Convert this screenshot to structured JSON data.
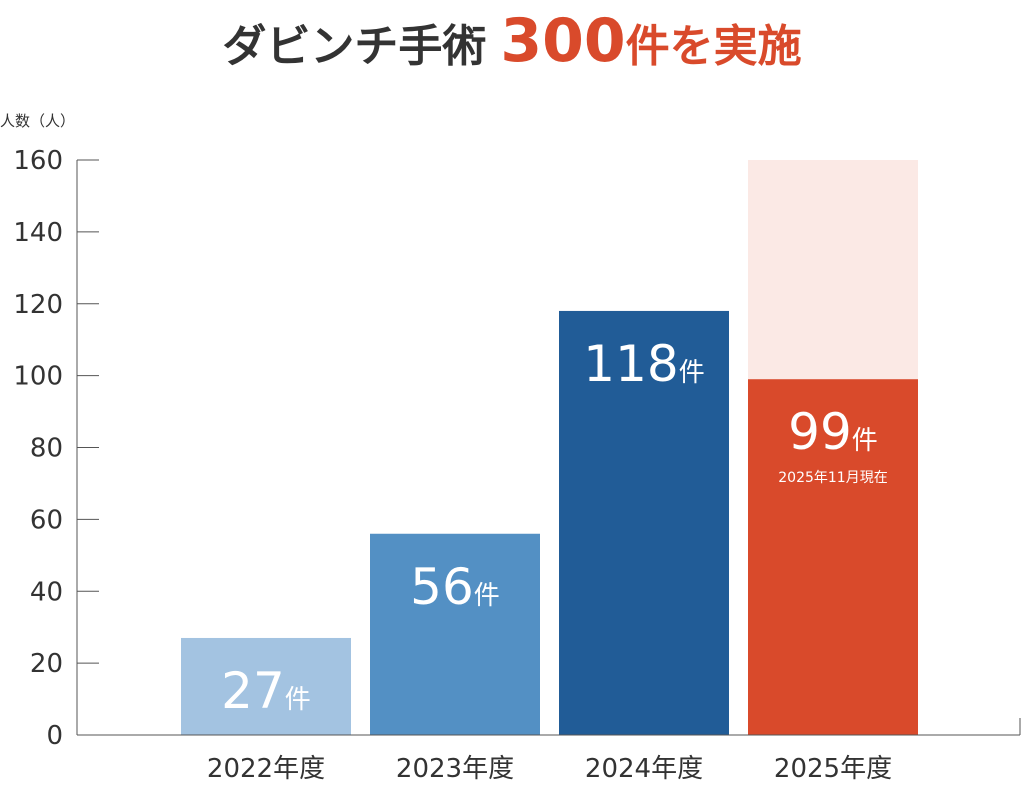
{
  "title": {
    "prefix": "ダビンチ手術",
    "highlight": "300",
    "suffix": "件を実施"
  },
  "chart_data": {
    "type": "bar",
    "ylabel": "人数（人）",
    "ylim": [
      0,
      160
    ],
    "yticks": [
      0,
      20,
      40,
      60,
      80,
      100,
      120,
      140,
      160
    ],
    "categories": [
      "2022年度",
      "2023年度",
      "2024年度",
      "2025年度"
    ],
    "values": [
      27,
      56,
      118,
      99
    ],
    "data_labels": [
      {
        "num": "27",
        "unit": "件"
      },
      {
        "num": "56",
        "unit": "件"
      },
      {
        "num": "118",
        "unit": "件"
      },
      {
        "num": "99",
        "unit": "件",
        "note": "2025年11月現在"
      }
    ],
    "background_value": {
      "category": "2025年度",
      "value": 160
    },
    "colors": [
      "#a3c3e1",
      "#5390c4",
      "#215c97",
      "#d94a2b"
    ],
    "background_color": "#fbe9e5"
  }
}
